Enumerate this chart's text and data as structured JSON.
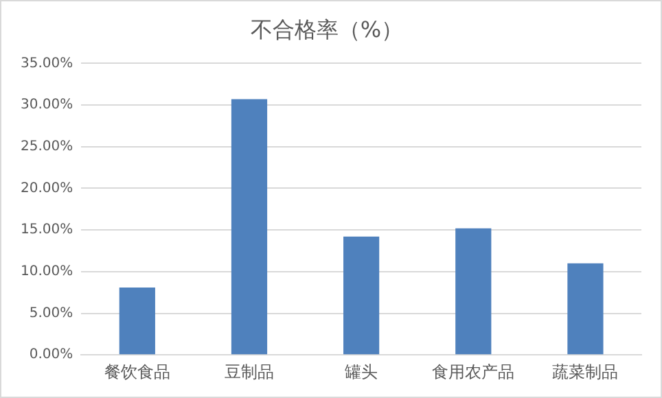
{
  "chart_data": {
    "type": "bar",
    "title": "不合格率（%）",
    "categories": [
      "餐饮食品",
      "豆制品",
      "罐头",
      "食用农产品",
      "蔬菜制品"
    ],
    "values": [
      8.1,
      30.7,
      14.2,
      15.2,
      11.0
    ],
    "color": "#4f81bd",
    "ylim": [
      0,
      35
    ],
    "yticks": [
      {
        "value": 0,
        "label": "0.00%"
      },
      {
        "value": 5,
        "label": "5.00%"
      },
      {
        "value": 10,
        "label": "10.00%"
      },
      {
        "value": 15,
        "label": "15.00%"
      },
      {
        "value": 20,
        "label": "20.00%"
      },
      {
        "value": 25,
        "label": "25.00%"
      },
      {
        "value": 30,
        "label": "30.00%"
      },
      {
        "value": 35,
        "label": "35.00%"
      }
    ],
    "grid": "y",
    "legend": false
  }
}
